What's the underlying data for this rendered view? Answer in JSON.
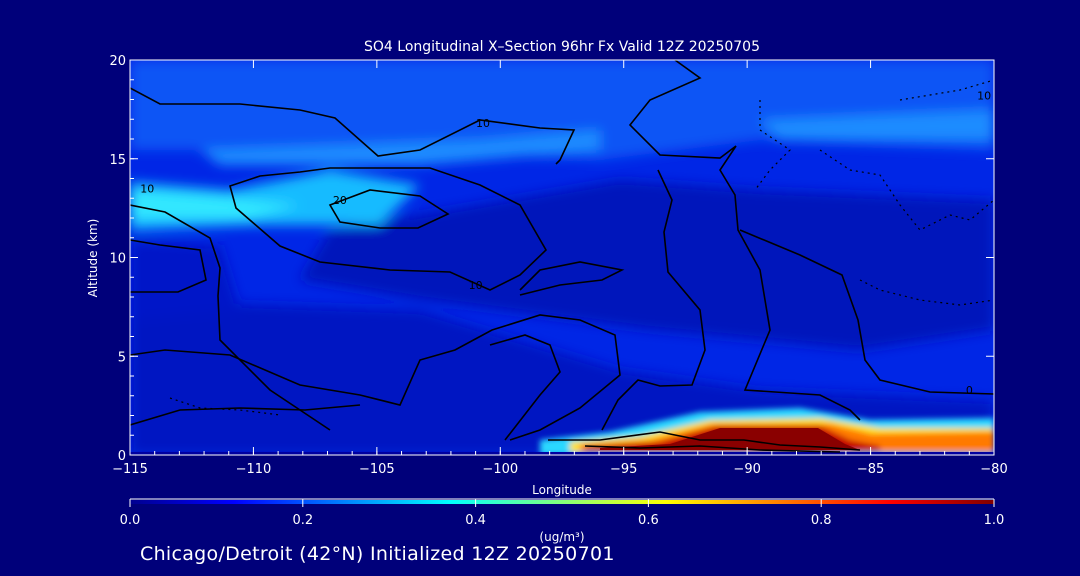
{
  "chart_data": {
    "type": "heatmap",
    "title": "SO4 Longitudinal X–Section 96hr  Fx Valid 12Z 20250705",
    "xlabel": "Longitude",
    "ylabel": "Altitude (km)",
    "xlim": [
      -115,
      -80
    ],
    "ylim": [
      0,
      20
    ],
    "x_ticks": [
      -115,
      -110,
      -105,
      -100,
      -95,
      -90,
      -85,
      -80
    ],
    "x_tick_labels": [
      "−115",
      "−110",
      "−105",
      "−100",
      "−95",
      "−90",
      "−85",
      "−80"
    ],
    "y_ticks": [
      0,
      5,
      10,
      15,
      20
    ],
    "y_tick_labels": [
      "0",
      "5",
      "10",
      "15",
      "20"
    ],
    "colorbar": {
      "label": "(ug/m³)",
      "range": [
        0.0,
        1.0
      ],
      "ticks": [
        0.0,
        0.2,
        0.4,
        0.6,
        0.8,
        1.0
      ],
      "tick_labels": [
        "0.0",
        "0.2",
        "0.4",
        "0.6",
        "0.8",
        "1.0"
      ]
    },
    "concentration_features": [
      {
        "lon_range": [
          -115,
          -110
        ],
        "alt_range": [
          11,
          14
        ],
        "value": 0.38
      },
      {
        "lon_range": [
          -110,
          -104
        ],
        "alt_range": [
          12,
          14
        ],
        "value": 0.3
      },
      {
        "lon_range": [
          -115,
          -80
        ],
        "alt_range": [
          14,
          19
        ],
        "value": 0.22
      },
      {
        "lon_range": [
          -94,
          -86
        ],
        "alt_range": [
          0.3,
          1.8
        ],
        "value": 1.0
      },
      {
        "lon_range": [
          -86,
          -80
        ],
        "alt_range": [
          0.3,
          1.3
        ],
        "value": 0.7
      }
    ],
    "contour_labels": [
      {
        "text": "10",
        "lon": -114.3,
        "alt": 13.3
      },
      {
        "text": "10",
        "lon": -100.7,
        "alt": 16.6
      },
      {
        "text": "20",
        "lon": -106.5,
        "alt": 12.7
      },
      {
        "text": "10",
        "lon": -101.0,
        "alt": 8.4
      },
      {
        "text": "10",
        "lon": -80.4,
        "alt": 18.0
      },
      {
        "text": "0",
        "lon": -81.0,
        "alt": 3.1
      }
    ]
  },
  "footer": "Chicago/Detroit (42°N) Initialized 12Z 20250701",
  "colors": {
    "background": "#00007a",
    "axis": "#ffffff",
    "contour": "#000000",
    "colormap": [
      "#00008f",
      "#0000ff",
      "#00ffff",
      "#ffff00",
      "#ff8000",
      "#800000"
    ]
  }
}
